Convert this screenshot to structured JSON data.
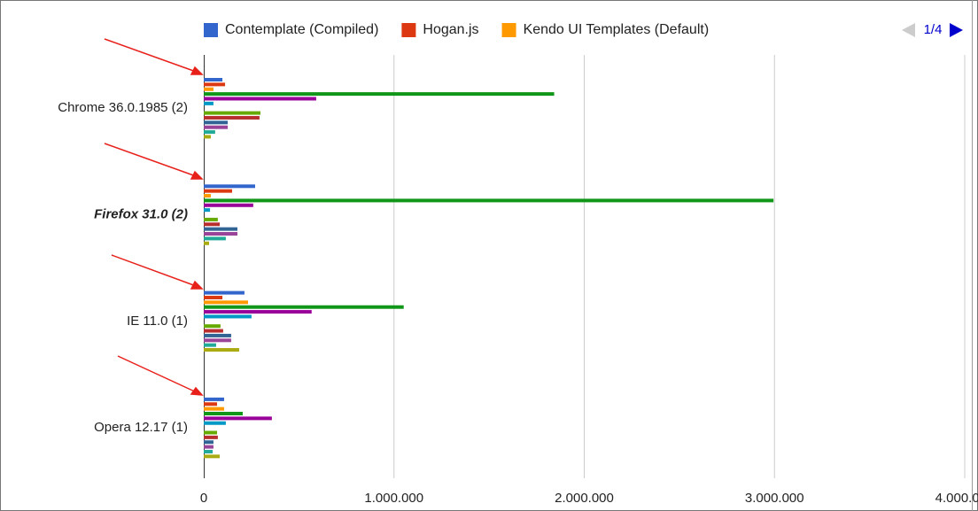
{
  "chart_data": {
    "type": "bar",
    "orientation": "horizontal",
    "categories": [
      "Chrome 36.0.1985 (2)",
      "Firefox 31.0 (2)",
      "IE 11.0 (1)",
      "Opera 12.17 (1)"
    ],
    "bold_italic_category_index": 1,
    "series": [
      {
        "name": "Contemplate (Compiled)",
        "color": "#3366cc",
        "values": [
          98000,
          270000,
          214000,
          107000
        ]
      },
      {
        "name": "Hogan.js",
        "color": "#dc3912",
        "values": [
          112000,
          149000,
          98000,
          70000
        ]
      },
      {
        "name": "Kendo UI Templates (Default)",
        "color": "#ff9900",
        "values": [
          51000,
          37000,
          233000,
          107000
        ]
      },
      {
        "color": "#109618",
        "values": [
          1842000,
          2995000,
          1051000,
          205000
        ]
      },
      {
        "color": "#990099",
        "values": [
          591000,
          260000,
          567000,
          358000
        ]
      },
      {
        "color": "#0099c6",
        "values": [
          51000,
          33000,
          251000,
          116000
        ]
      },
      {
        "color": "#dd4477",
        "values": [
          null,
          null,
          null,
          null
        ]
      },
      {
        "color": "#66aa00",
        "values": [
          298000,
          74000,
          88000,
          70000
        ]
      },
      {
        "color": "#b82e2e",
        "values": [
          293000,
          84000,
          102000,
          74000
        ]
      },
      {
        "color": "#316395",
        "values": [
          126000,
          177000,
          144000,
          51000
        ]
      },
      {
        "color": "#994499",
        "values": [
          126000,
          177000,
          144000,
          51000
        ]
      },
      {
        "color": "#22aa99",
        "values": [
          60000,
          116000,
          65000,
          47000
        ]
      },
      {
        "color": "#aaaa11",
        "values": [
          37000,
          28000,
          186000,
          84000
        ]
      }
    ],
    "xlim": [
      0,
      4000000
    ],
    "xticks": [
      0,
      {
        "value": 1000000,
        "label": "1.000.000"
      },
      {
        "value": 2000000,
        "label": "2.000.000"
      },
      {
        "value": 3000000,
        "label": "3.000.000"
      },
      {
        "value": 4000000,
        "label": "4.000.000"
      }
    ],
    "grid": true,
    "legend": "top",
    "pager": "1/4"
  }
}
